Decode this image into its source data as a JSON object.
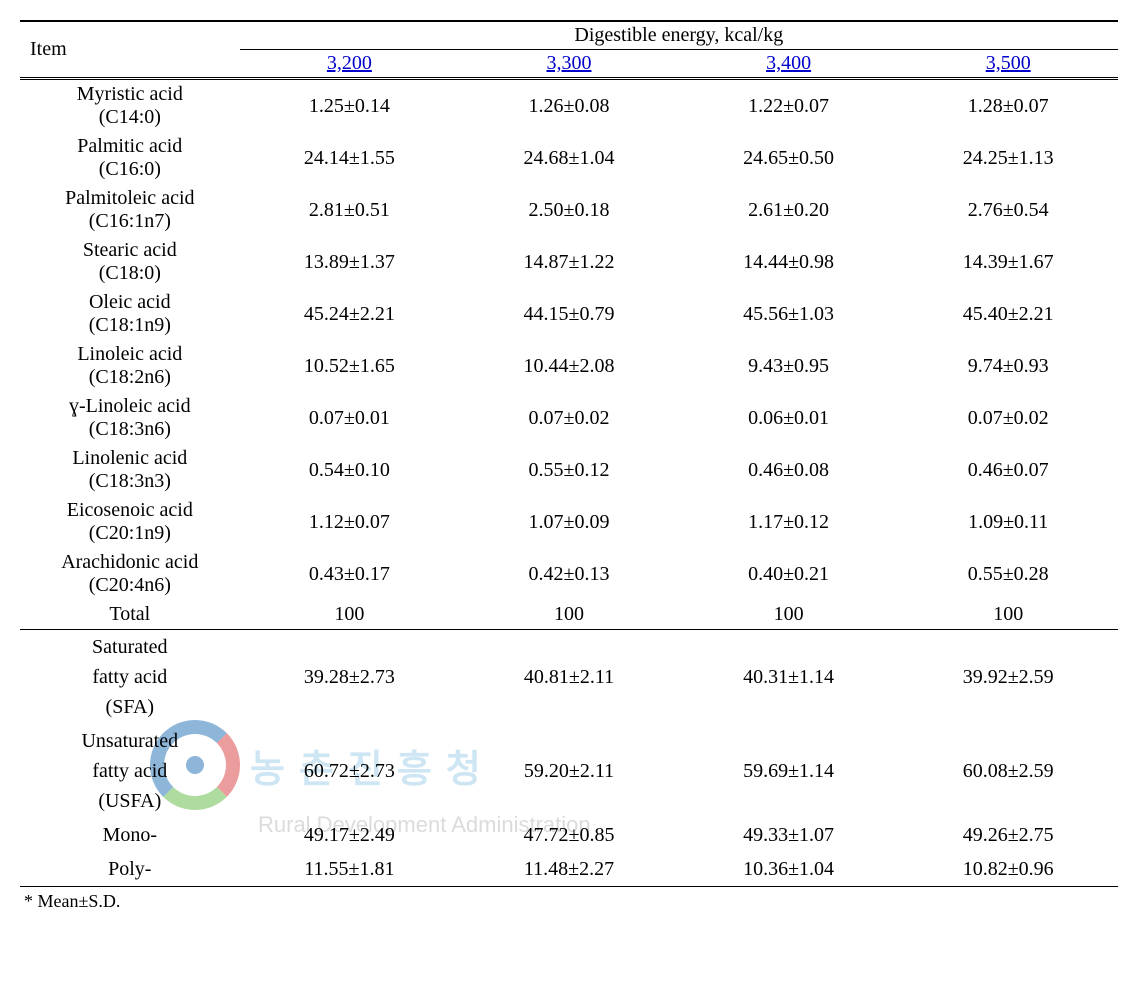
{
  "table": {
    "header": {
      "item_label": "Item",
      "group_label": "Digestible energy, kcal/kg",
      "levels": [
        "3,200",
        "3,300",
        "3,400",
        "3,500"
      ]
    },
    "rows": [
      {
        "item": "Myristic acid(C14:0)",
        "v": [
          "1.25±0.14",
          "1.26±0.08",
          "1.22±0.07",
          "1.28±0.07"
        ]
      },
      {
        "item": "Palmitic acid(C16:0)",
        "v": [
          "24.14±1.55",
          "24.68±1.04",
          "24.65±0.50",
          "24.25±1.13"
        ]
      },
      {
        "item": "Palmitoleic acid(C16:1n7)",
        "v": [
          "2.81±0.51",
          "2.50±0.18",
          "2.61±0.20",
          "2.76±0.54"
        ]
      },
      {
        "item": "Stearic acid(C18:0)",
        "v": [
          "13.89±1.37",
          "14.87±1.22",
          "14.44±0.98",
          "14.39±1.67"
        ]
      },
      {
        "item": "Oleic acid(C18:1n9)",
        "v": [
          "45.24±2.21",
          "44.15±0.79",
          "45.56±1.03",
          "45.40±2.21"
        ]
      },
      {
        "item": "Linoleic acid(C18:2n6)",
        "v": [
          "10.52±1.65",
          "10.44±2.08",
          "9.43±0.95",
          "9.74±0.93"
        ]
      },
      {
        "item": "ɣ-Linoleic acid(C18:3n6)",
        "v": [
          "0.07±0.01",
          "0.07±0.02",
          "0.06±0.01",
          "0.07±0.02"
        ]
      },
      {
        "item": "Linolenic acid(C18:3n3)",
        "v": [
          "0.54±0.10",
          "0.55±0.12",
          "0.46±0.08",
          "0.46±0.07"
        ]
      },
      {
        "item": "Eicosenoic acid(C20:1n9)",
        "v": [
          "1.12±0.07",
          "1.07±0.09",
          "1.17±0.12",
          "1.09±0.11"
        ]
      },
      {
        "item": "Arachidonic acid(C20:4n6)",
        "v": [
          "0.43±0.17",
          "0.42±0.13",
          "0.40±0.21",
          "0.55±0.28"
        ]
      },
      {
        "item": "Total",
        "v": [
          "100",
          "100",
          "100",
          "100"
        ],
        "single_line": true
      }
    ],
    "summary": [
      {
        "item": "Saturated fatty acid (SFA)",
        "v": [
          "39.28±2.73",
          "40.81±2.11",
          "40.31±1.14",
          "39.92±2.59"
        ]
      },
      {
        "item": "Unsaturated fatty acid (USFA)",
        "v": [
          "60.72±2.73",
          "59.20±2.11",
          "59.69±1.14",
          "60.08±2.59"
        ]
      },
      {
        "item": "Mono-",
        "v": [
          "49.17±2.49",
          "47.72±0.85",
          "49.33±1.07",
          "49.26±2.75"
        ],
        "single_line": true
      },
      {
        "item": "Poly-",
        "v": [
          "11.55±1.81",
          "11.48±2.27",
          "10.36±1.04",
          "10.82±0.96"
        ],
        "single_line": true
      }
    ],
    "footnote": "* Mean±S.D.",
    "colors": {
      "text": "#000000",
      "link": "#0000cc",
      "border": "#000000",
      "background": "#ffffff"
    },
    "col_widths_pct": [
      20,
      20,
      20,
      20,
      20
    ]
  },
  "watermark": {
    "korean": "농촌진흥청",
    "english": "Rural Development Administration",
    "ring_colors": [
      "#1f6fb5",
      "#d93b3b",
      "#5fb83f"
    ]
  }
}
